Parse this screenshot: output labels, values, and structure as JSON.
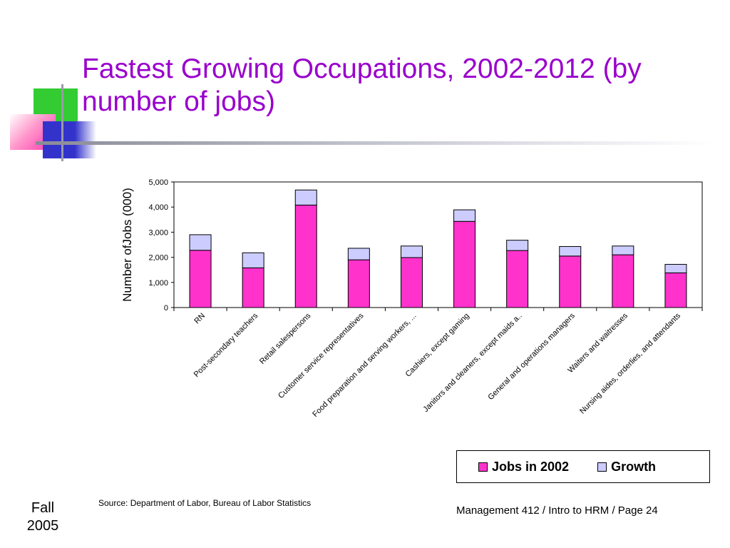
{
  "slide": {
    "title": "Fastest Growing Occupations, 2002-2012 (by number of jobs)",
    "source": "Source: Department of Labor, Bureau of Labor Statistics",
    "footer_left_line1": "Fall",
    "footer_left_line2": "2005",
    "footer_right": "Management 412 / Intro to HRM / Page 24"
  },
  "colors": {
    "title": "#9900cc",
    "jobs": "#ff33cc",
    "growth": "#ccccff"
  },
  "chart_data": {
    "type": "bar",
    "stacked": true,
    "ylabel": "Number ofJobs (000)",
    "xlabel": "",
    "ylim": [
      0,
      5000
    ],
    "yticks": [
      0,
      1000,
      2000,
      3000,
      4000,
      5000
    ],
    "ytick_labels": [
      "0",
      "1,000",
      "2,000",
      "3,000",
      "4,000",
      "5,000"
    ],
    "grid": false,
    "legend_position": "bottom-right",
    "categories": [
      "RN",
      "Post-secondary teachers",
      "Retail salespersons",
      "Customer service representatives",
      "Food preparation and serving workers, ...",
      "Cashiers, except gaming",
      "Janitors and cleaners, except maids a..",
      "General and operations managers",
      "Waiters and waitresses",
      "Nursing aides, orderlies, and attendants"
    ],
    "series": [
      {
        "name": "Jobs in 2002",
        "color": "#ff33cc",
        "values": [
          2280,
          1580,
          4080,
          1900,
          1990,
          3430,
          2270,
          2050,
          2100,
          1380
        ]
      },
      {
        "name": "Growth",
        "color": "#ccccff",
        "values": [
          620,
          600,
          600,
          460,
          460,
          460,
          410,
          380,
          350,
          340
        ]
      }
    ]
  }
}
